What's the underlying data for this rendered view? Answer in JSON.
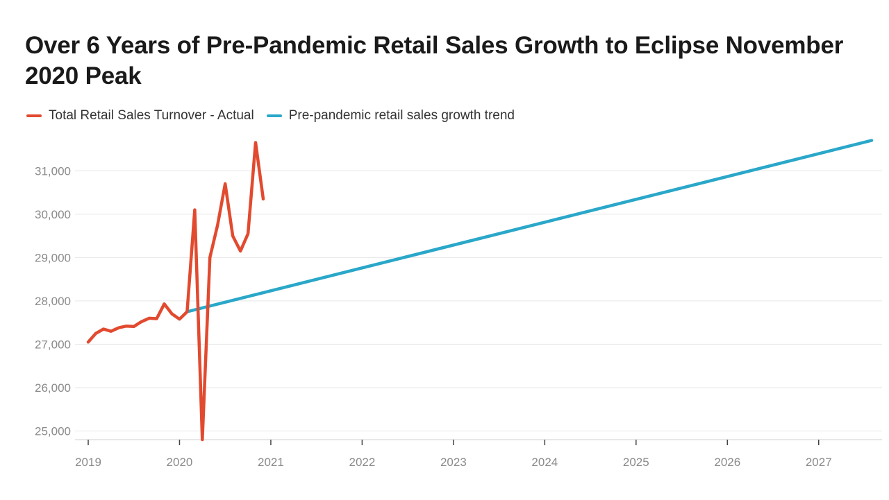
{
  "chart_data": {
    "type": "line",
    "title": "Over 6 Years of Pre-Pandemic Retail Sales Growth to Eclipse November 2020 Peak",
    "xlabel": "",
    "ylabel": "",
    "xlim": [
      2019,
      2027.58
    ],
    "ylim": [
      24800,
      31900
    ],
    "grid": true,
    "legend_position": "top-left",
    "x_ticks": [
      {
        "value": 2019,
        "label": "2019"
      },
      {
        "value": 2020,
        "label": "2020"
      },
      {
        "value": 2021,
        "label": "2021"
      },
      {
        "value": 2022,
        "label": "2022"
      },
      {
        "value": 2023,
        "label": "2023"
      },
      {
        "value": 2024,
        "label": "2024"
      },
      {
        "value": 2025,
        "label": "2025"
      },
      {
        "value": 2026,
        "label": "2026"
      },
      {
        "value": 2027,
        "label": "2027"
      }
    ],
    "y_ticks": [
      {
        "value": 25000,
        "label": "25,000"
      },
      {
        "value": 26000,
        "label": "26,000"
      },
      {
        "value": 27000,
        "label": "27,000"
      },
      {
        "value": 28000,
        "label": "28,000"
      },
      {
        "value": 29000,
        "label": "29,000"
      },
      {
        "value": 30000,
        "label": "30,000"
      },
      {
        "value": 31000,
        "label": "31,000"
      }
    ],
    "series": [
      {
        "name": "Total Retail Sales Turnover - Actual",
        "color": "#e24a2f",
        "x": [
          2019.0,
          2019.083,
          2019.167,
          2019.25,
          2019.333,
          2019.417,
          2019.5,
          2019.583,
          2019.667,
          2019.75,
          2019.833,
          2019.917,
          2020.0,
          2020.083,
          2020.167,
          2020.25,
          2020.333,
          2020.417,
          2020.5,
          2020.583,
          2020.667,
          2020.75,
          2020.833,
          2020.917
        ],
        "y": [
          27050,
          27250,
          27350,
          27300,
          27380,
          27420,
          27410,
          27520,
          27600,
          27590,
          27930,
          27700,
          27580,
          27750,
          30100,
          24800,
          29000,
          29750,
          30700,
          29500,
          29150,
          29550,
          31650,
          30350
        ]
      },
      {
        "name": "Pre-pandemic retail sales growth trend",
        "color": "#2aa7c9",
        "x": [
          2020.083,
          2027.58
        ],
        "y": [
          27750,
          31700
        ]
      }
    ]
  }
}
